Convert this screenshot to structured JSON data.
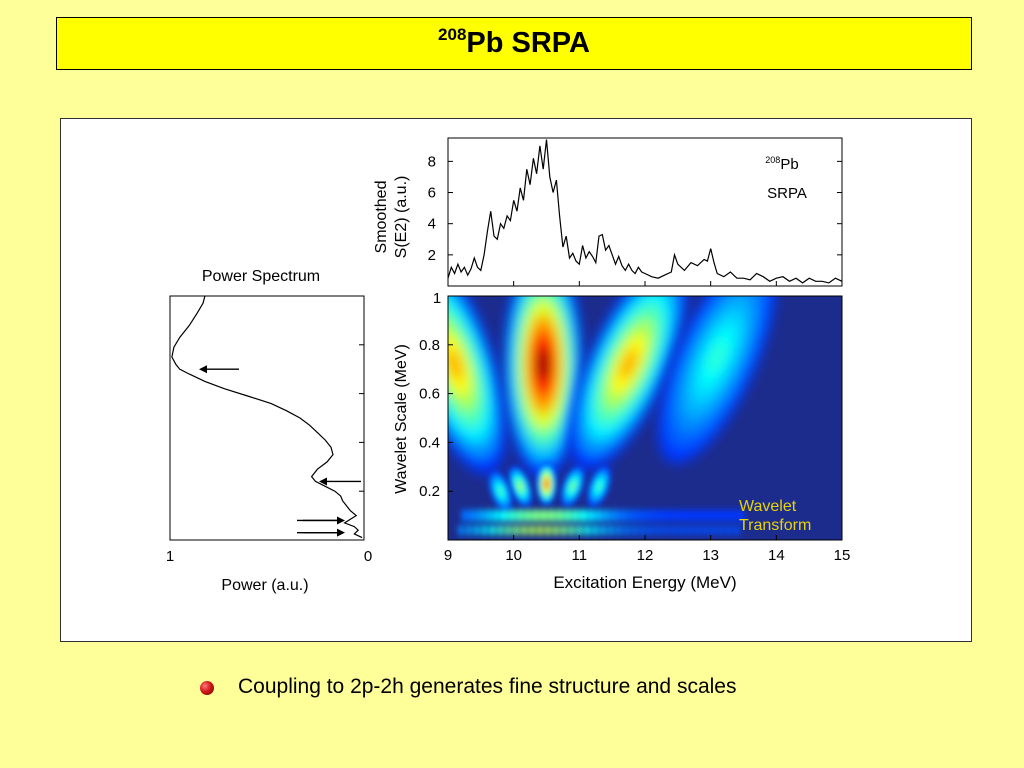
{
  "slide": {
    "title_sup": "208",
    "title_main": "Pb SRPA",
    "bullet": "Coupling to 2p-2h generates fine structure and scales",
    "bullet_color": "#c01010",
    "background": "#FFFF99",
    "title_background": "#FFFF00"
  },
  "chart_data": [
    {
      "type": "line",
      "id": "smoothed-strength",
      "ylabel_lines": [
        "Smoothed",
        "S(E2) (a.u.)"
      ],
      "annotation_sup": "208",
      "annotation_main": "Pb",
      "annotation_line2": "SRPA",
      "xlim": [
        9,
        15
      ],
      "ylim": [
        0,
        9.5
      ],
      "yticks": [
        2,
        4,
        6,
        8
      ],
      "x": [
        9.0,
        9.05,
        9.1,
        9.15,
        9.2,
        9.25,
        9.3,
        9.35,
        9.4,
        9.45,
        9.5,
        9.55,
        9.6,
        9.65,
        9.7,
        9.75,
        9.8,
        9.85,
        9.9,
        9.95,
        10.0,
        10.05,
        10.1,
        10.15,
        10.2,
        10.25,
        10.3,
        10.35,
        10.4,
        10.45,
        10.5,
        10.55,
        10.6,
        10.65,
        10.7,
        10.75,
        10.8,
        10.85,
        10.9,
        10.95,
        11.0,
        11.05,
        11.1,
        11.15,
        11.2,
        11.25,
        11.3,
        11.35,
        11.4,
        11.45,
        11.5,
        11.55,
        11.6,
        11.65,
        11.7,
        11.75,
        11.8,
        11.85,
        11.9,
        11.95,
        12.0,
        12.1,
        12.2,
        12.3,
        12.4,
        12.45,
        12.5,
        12.6,
        12.7,
        12.8,
        12.9,
        12.95,
        13.0,
        13.05,
        13.1,
        13.2,
        13.3,
        13.4,
        13.5,
        13.6,
        13.7,
        13.8,
        13.9,
        14.0,
        14.1,
        14.2,
        14.3,
        14.4,
        14.5,
        14.6,
        14.7,
        14.8,
        14.9,
        15.0
      ],
      "y": [
        0.5,
        1.2,
        0.8,
        1.4,
        0.9,
        1.2,
        0.7,
        1.1,
        1.8,
        1.2,
        1.0,
        2.0,
        3.5,
        4.8,
        3.2,
        3.0,
        4.0,
        3.7,
        4.5,
        4.2,
        5.5,
        4.8,
        6.3,
        5.5,
        7.5,
        6.5,
        8.2,
        7.2,
        9.0,
        7.5,
        9.4,
        7.0,
        6.0,
        6.8,
        4.5,
        2.5,
        3.2,
        1.8,
        2.1,
        1.6,
        1.4,
        2.6,
        1.8,
        2.2,
        1.9,
        1.5,
        3.2,
        3.3,
        2.3,
        2.6,
        2.0,
        1.4,
        1.9,
        1.3,
        1.0,
        1.4,
        1.0,
        0.8,
        1.2,
        0.9,
        0.8,
        0.6,
        0.5,
        0.7,
        0.9,
        2.0,
        1.4,
        1.0,
        1.5,
        1.3,
        1.7,
        1.6,
        2.4,
        1.5,
        0.8,
        0.6,
        0.9,
        0.5,
        0.5,
        0.4,
        0.8,
        0.6,
        0.3,
        0.5,
        0.6,
        0.3,
        0.5,
        0.2,
        0.5,
        0.3,
        0.3,
        0.2,
        0.5,
        0.3
      ]
    },
    {
      "type": "heatmap",
      "id": "wavelet-transform",
      "xlabel": "Excitation Energy (MeV)",
      "ylabel": "Wavelet Scale (MeV)",
      "xlim": [
        9,
        15
      ],
      "ylim": [
        0,
        1
      ],
      "xticks": [
        9,
        10,
        11,
        12,
        13,
        14,
        15
      ],
      "yticks": [
        0.2,
        0.4,
        0.6,
        0.8
      ],
      "top_tick_label": "1",
      "annotation_line1": "Wavelet",
      "annotation_line2": "Transform",
      "annotation_color": "#E8D400",
      "colormap": "jet",
      "ridges": [
        {
          "center_energy": 9.1,
          "peak_scale": 0.72,
          "intensity": 0.72
        },
        {
          "center_energy": 10.45,
          "peak_scale": 0.72,
          "intensity": 1.0
        },
        {
          "center_energy": 11.75,
          "peak_scale": 0.72,
          "intensity": 0.72
        },
        {
          "center_energy": 13.1,
          "peak_scale": 0.75,
          "intensity": 0.42
        },
        {
          "center_energy": 10.5,
          "peak_scale": 0.23,
          "intensity": 0.82
        },
        {
          "center_energy": 10.1,
          "peak_scale": 0.22,
          "intensity": 0.55
        },
        {
          "center_energy": 10.9,
          "peak_scale": 0.22,
          "intensity": 0.5
        },
        {
          "center_energy": 11.3,
          "peak_scale": 0.22,
          "intensity": 0.45
        },
        {
          "center_energy": 9.8,
          "peak_scale": 0.2,
          "intensity": 0.45
        }
      ]
    },
    {
      "type": "line",
      "id": "power-spectrum",
      "title": "Power Spectrum",
      "xlabel": "Power (a.u.)",
      "x_left_label": "1",
      "x_right_label": "0",
      "ylim": [
        0,
        1
      ],
      "x_reversed": true,
      "scale": [
        1.0,
        0.97,
        0.93,
        0.88,
        0.83,
        0.79,
        0.75,
        0.72,
        0.7,
        0.68,
        0.65,
        0.62,
        0.59,
        0.56,
        0.53,
        0.5,
        0.47,
        0.44,
        0.41,
        0.38,
        0.35,
        0.32,
        0.29,
        0.26,
        0.24,
        0.22,
        0.2,
        0.18,
        0.16,
        0.14,
        0.12,
        0.1,
        0.085,
        0.07,
        0.055,
        0.04,
        0.025,
        0.01
      ],
      "power": [
        0.82,
        0.83,
        0.86,
        0.9,
        0.95,
        0.98,
        0.99,
        0.97,
        0.95,
        0.9,
        0.82,
        0.72,
        0.6,
        0.48,
        0.4,
        0.33,
        0.28,
        0.24,
        0.2,
        0.17,
        0.16,
        0.19,
        0.24,
        0.27,
        0.25,
        0.2,
        0.15,
        0.12,
        0.11,
        0.09,
        0.07,
        0.04,
        0.07,
        0.1,
        0.05,
        0.03,
        0.05,
        0.01
      ],
      "arrow_scales": [
        0.7,
        0.24,
        0.08,
        0.03
      ]
    }
  ]
}
